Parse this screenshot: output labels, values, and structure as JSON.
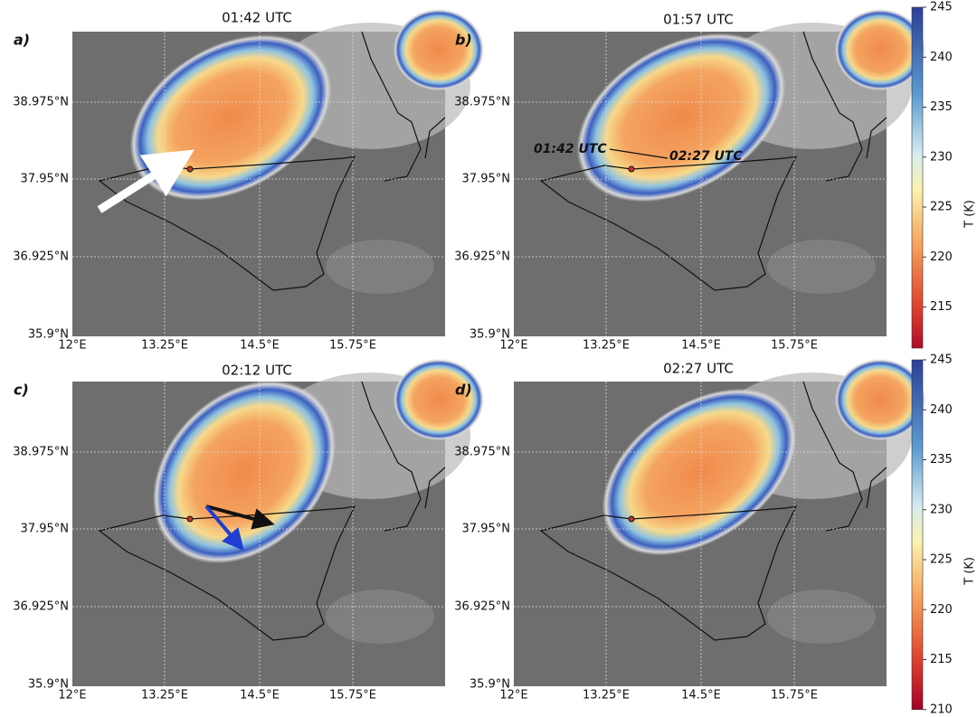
{
  "panels": [
    {
      "label": "a)",
      "title": "01:42 UTC"
    },
    {
      "label": "b)",
      "title": "01:57 UTC",
      "annotations": [
        "01:42 UTC",
        "02:27 UTC"
      ]
    },
    {
      "label": "c)",
      "title": "02:12 UTC"
    },
    {
      "label": "d)",
      "title": "02:27 UTC"
    }
  ],
  "lat_ticks": [
    "38.975°N",
    "37.95°N",
    "36.925°N",
    "35.9°N"
  ],
  "lon_ticks": [
    "12°E",
    "13.25°E",
    "14.5°E",
    "15.75°E"
  ],
  "colorbars": [
    {
      "label": "T (K)",
      "range": [
        210,
        245
      ],
      "ticks": [
        245,
        240,
        235,
        230,
        225,
        220,
        215
      ]
    },
    {
      "label": "T (K)",
      "range": [
        210,
        245
      ],
      "ticks": [
        245,
        240,
        235,
        230,
        225,
        220,
        215,
        210
      ]
    }
  ]
}
